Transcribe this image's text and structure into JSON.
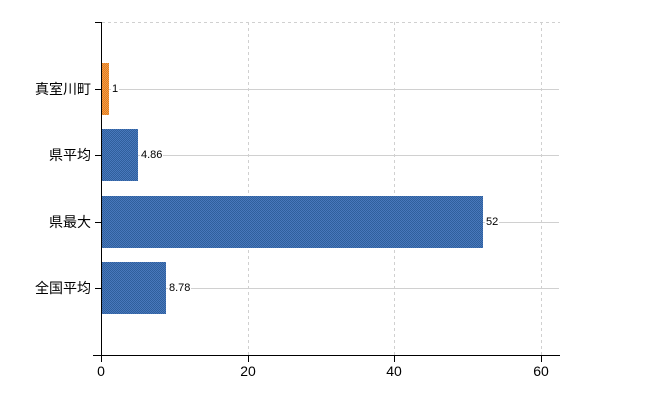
{
  "chart_data": {
    "type": "bar",
    "orientation": "horizontal",
    "categories": [
      "真室川町",
      "県平均",
      "県最大",
      "全国平均"
    ],
    "values": [
      1,
      4.86,
      52,
      8.78
    ],
    "value_labels": [
      "1",
      "4.86",
      "52",
      "8.78"
    ],
    "bar_colors": [
      "#ea8c34",
      "#3c6bac",
      "#3c6bac",
      "#3c6bac"
    ],
    "bar_colors_dither": [
      [
        "#f49b4a",
        "#e07e1e"
      ],
      [
        "#4878bc",
        "#2f5f9c"
      ],
      [
        "#4878bc",
        "#2f5f9c"
      ],
      [
        "#4878bc",
        "#2f5f9c"
      ]
    ],
    "xticks": [
      0,
      20,
      40,
      60
    ],
    "xtick_labels": [
      "0",
      "20",
      "40",
      "60"
    ],
    "xlim": [
      0,
      62.6
    ],
    "grid": {
      "color": "#d0d0d0",
      "vertical_style": "dashed",
      "horizontal_style": "solid",
      "top_border_style": "dashed"
    },
    "axis_color": "#000000",
    "text_color": "#000000",
    "background_color": "#ffffff",
    "legend": "none",
    "title": ""
  }
}
